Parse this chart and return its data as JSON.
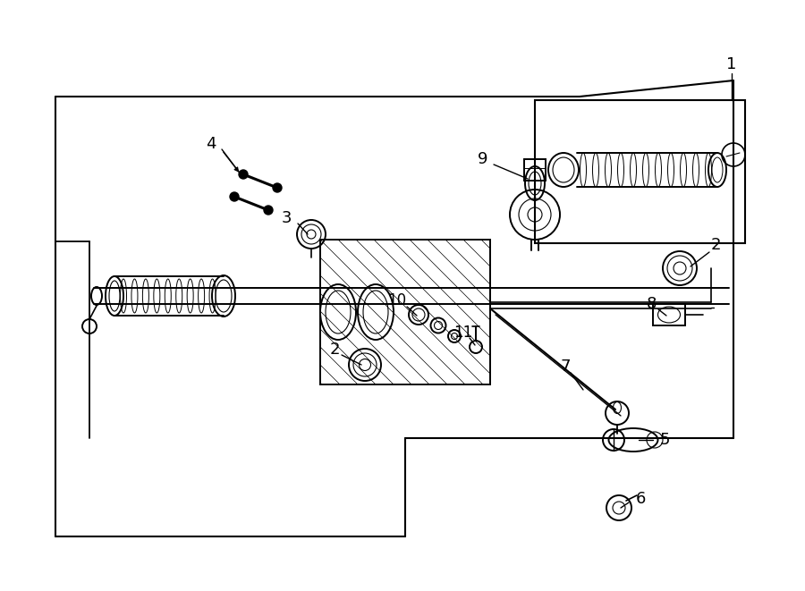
{
  "bg_color": "#ffffff",
  "line_color": "#000000",
  "fig_w": 9.0,
  "fig_h": 6.61,
  "dpi": 100,
  "lw": 1.3
}
